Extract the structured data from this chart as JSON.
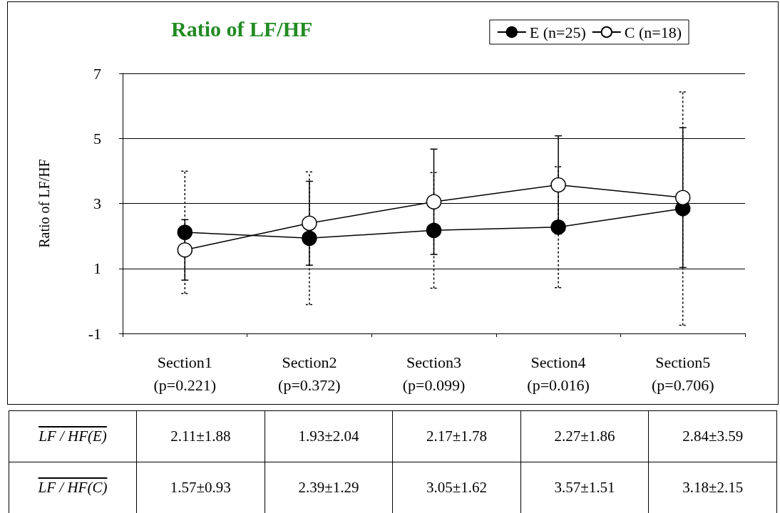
{
  "chart_data": {
    "type": "line",
    "title": "Ratio of LF/HF",
    "ylabel": "Ratio of LF/HF",
    "categories": [
      "Section1\n(p=0.221)",
      "Section2\n(p=0.372)",
      "Section3\n(p=0.099)",
      "Section4\n(p=0.016)",
      "Section5\n(p=0.706)"
    ],
    "series": [
      {
        "name": "E (n=25)",
        "color": "#000000",
        "values": [
          2.11,
          1.93,
          2.17,
          2.27,
          2.84
        ],
        "errors": [
          1.88,
          2.04,
          1.78,
          1.86,
          3.59
        ],
        "value_labels": [
          "2.11±1.88",
          "1.93±2.04",
          "2.17±1.78",
          "2.27±1.86",
          "2.84±3.59"
        ]
      },
      {
        "name": "C (n=18)",
        "color": "#000000",
        "values": [
          1.57,
          2.39,
          3.05,
          3.57,
          3.18
        ],
        "errors": [
          0.93,
          1.29,
          1.62,
          1.51,
          2.15
        ],
        "value_labels": [
          "1.57±0.93",
          "2.39±1.29",
          "3.05±1.62",
          "3.57±1.51",
          "3.18±2.15"
        ]
      }
    ],
    "annotations": [
      "LF / HF(E)",
      "LF / HF(C)"
    ],
    "ylim": [
      -1,
      7
    ],
    "yticks": [
      -1,
      1,
      3,
      5,
      7
    ],
    "grid": "y",
    "legend": "top right",
    "marker": "circle",
    "line_style": "solid"
  }
}
